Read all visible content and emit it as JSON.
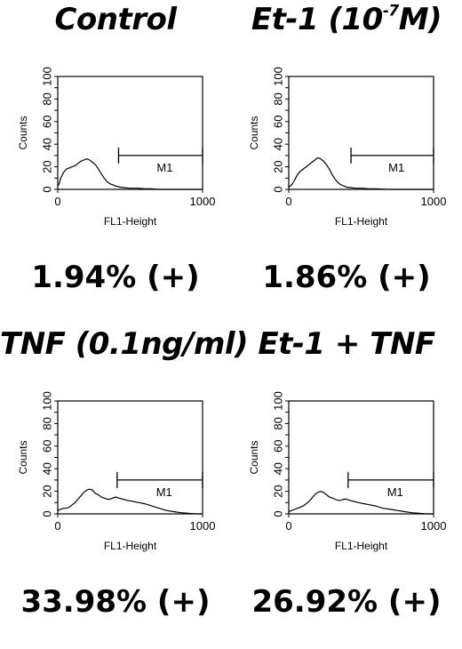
{
  "chart_data": [
    {
      "type": "histogram",
      "title": "Control",
      "xlabel": "FL1-Height",
      "ylabel": "Counts",
      "xlim": [
        0,
        1000
      ],
      "ylim": [
        0,
        100
      ],
      "x_ticks": [
        "0",
        "1000"
      ],
      "y_ticks": [
        "0",
        "10",
        "20",
        "30",
        "40",
        "50",
        "60",
        "70",
        "80",
        "90",
        "100"
      ],
      "gate": {
        "label": "M1",
        "x_start": 420,
        "x_end": 1000,
        "y": 30
      },
      "percent_label": "1.94% (+)",
      "x": [
        0,
        10,
        20,
        40,
        60,
        80,
        100,
        120,
        140,
        160,
        180,
        200,
        220,
        240,
        260,
        280,
        300,
        320,
        340,
        360,
        380,
        400,
        430,
        460,
        500,
        550,
        600,
        650,
        700,
        800,
        900,
        1000
      ],
      "y": [
        3,
        5,
        10,
        15,
        18,
        19,
        20,
        21,
        23,
        25,
        26,
        27,
        26,
        24,
        22,
        18,
        14,
        10,
        7,
        5,
        4,
        3,
        2,
        1.5,
        1,
        1,
        0.5,
        0.5,
        0,
        0,
        0,
        0
      ]
    },
    {
      "type": "histogram",
      "title_main": "Et-1 (10",
      "title_sup": "-7",
      "title_end": "M)",
      "xlabel": "FL1-Height",
      "ylabel": "Counts",
      "xlim": [
        0,
        1000
      ],
      "ylim": [
        0,
        100
      ],
      "x_ticks": [
        "0",
        "1000"
      ],
      "y_ticks": [
        "0",
        "10",
        "20",
        "30",
        "40",
        "50",
        "60",
        "70",
        "80",
        "90",
        "100"
      ],
      "gate": {
        "label": "M1",
        "x_start": 430,
        "x_end": 1000,
        "y": 30
      },
      "percent_label": "1.86% (+)",
      "x": [
        0,
        20,
        40,
        60,
        80,
        100,
        120,
        140,
        160,
        180,
        200,
        220,
        240,
        260,
        280,
        300,
        320,
        340,
        360,
        380,
        400,
        430,
        460,
        500,
        550,
        600,
        700,
        800,
        900,
        1000
      ],
      "y": [
        2,
        4,
        8,
        13,
        16,
        18,
        20,
        22,
        24,
        26,
        28,
        27,
        25,
        22,
        18,
        13,
        9,
        6,
        4,
        3,
        2,
        1.5,
        1,
        1,
        0.5,
        0.5,
        0,
        0,
        0,
        0
      ]
    },
    {
      "type": "histogram",
      "title": "TNF (0.1ng/ml)",
      "xlabel": "FL1-Height",
      "ylabel": "Counts",
      "xlim": [
        0,
        1000
      ],
      "ylim": [
        0,
        100
      ],
      "x_ticks": [
        "0",
        "1000"
      ],
      "y_ticks": [
        "0",
        "10",
        "20",
        "30",
        "40",
        "50",
        "60",
        "70",
        "80",
        "90",
        "100"
      ],
      "gate": {
        "label": "M1",
        "x_start": 410,
        "x_end": 1000,
        "y": 30
      },
      "percent_label": "33.98% (+)",
      "x": [
        0,
        20,
        40,
        60,
        80,
        100,
        120,
        140,
        160,
        180,
        200,
        220,
        240,
        260,
        280,
        300,
        320,
        340,
        360,
        380,
        400,
        420,
        450,
        480,
        520,
        560,
        600,
        650,
        700,
        750,
        800,
        850,
        900,
        950,
        1000
      ],
      "y": [
        3,
        4,
        5,
        5,
        6,
        8,
        10,
        13,
        16,
        19,
        21,
        22,
        21,
        18,
        17,
        15,
        14,
        13,
        13,
        14,
        15,
        14,
        13,
        12,
        11,
        10,
        9,
        7,
        5,
        3,
        2,
        1,
        0.5,
        0,
        0
      ]
    },
    {
      "type": "histogram",
      "title": "Et-1 + TNF",
      "xlabel": "FL1-Height",
      "ylabel": "Counts",
      "xlim": [
        0,
        1000
      ],
      "ylim": [
        0,
        100
      ],
      "x_ticks": [
        "0",
        "1000"
      ],
      "y_ticks": [
        "0",
        "10",
        "20",
        "30",
        "40",
        "50",
        "60",
        "70",
        "80",
        "90",
        "100"
      ],
      "gate": {
        "label": "M1",
        "x_start": 410,
        "x_end": 1000,
        "y": 30
      },
      "percent_label": "26.92% (+)",
      "x": [
        0,
        20,
        40,
        60,
        80,
        100,
        120,
        140,
        160,
        180,
        200,
        220,
        240,
        260,
        280,
        300,
        320,
        340,
        360,
        380,
        400,
        420,
        450,
        480,
        520,
        560,
        600,
        650,
        700,
        750,
        800,
        850,
        900,
        950,
        1000
      ],
      "y": [
        2,
        3,
        4,
        5,
        6,
        7,
        9,
        11,
        14,
        17,
        19,
        20,
        19,
        17,
        15,
        14,
        13,
        12,
        12,
        13,
        13,
        12,
        11,
        10,
        9,
        8,
        7,
        5,
        4,
        3,
        2,
        1,
        0.5,
        0,
        0
      ]
    }
  ]
}
